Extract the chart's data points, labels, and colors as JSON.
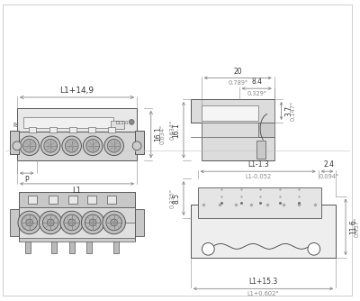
{
  "bg_color": "#ffffff",
  "line_color": "#555555",
  "dim_color": "#888888",
  "text_color": "#333333",
  "figsize": [
    4.0,
    3.34
  ],
  "dpi": 100,
  "top_left": {
    "title_dim": "L1+14,9",
    "height_dim": "16.1",
    "height_dim_in": "0.634\"",
    "pitch_label": "P",
    "length_label": "L1"
  },
  "top_right": {
    "width_dim": "8.4",
    "width_dim_in": "0.329\"",
    "height_small": "3.7",
    "height_small_in": "0.147\"",
    "depth_dim": "20",
    "depth_dim_in": "0.789\""
  },
  "bottom_left": {
    "label": ""
  },
  "bottom_right": {
    "width1_dim": "L1-1.3",
    "width1_dim_in": "L1-0.052",
    "small_dim": "2.4",
    "small_dim_in": "0.094\"",
    "height_dim": "8.5",
    "height_dim_in": "0.335\"",
    "total_dim": "L1+15.3",
    "total_dim_in": "L1+0.602\"",
    "right_dim": "11.6",
    "right_dim_in": "0.457\""
  }
}
